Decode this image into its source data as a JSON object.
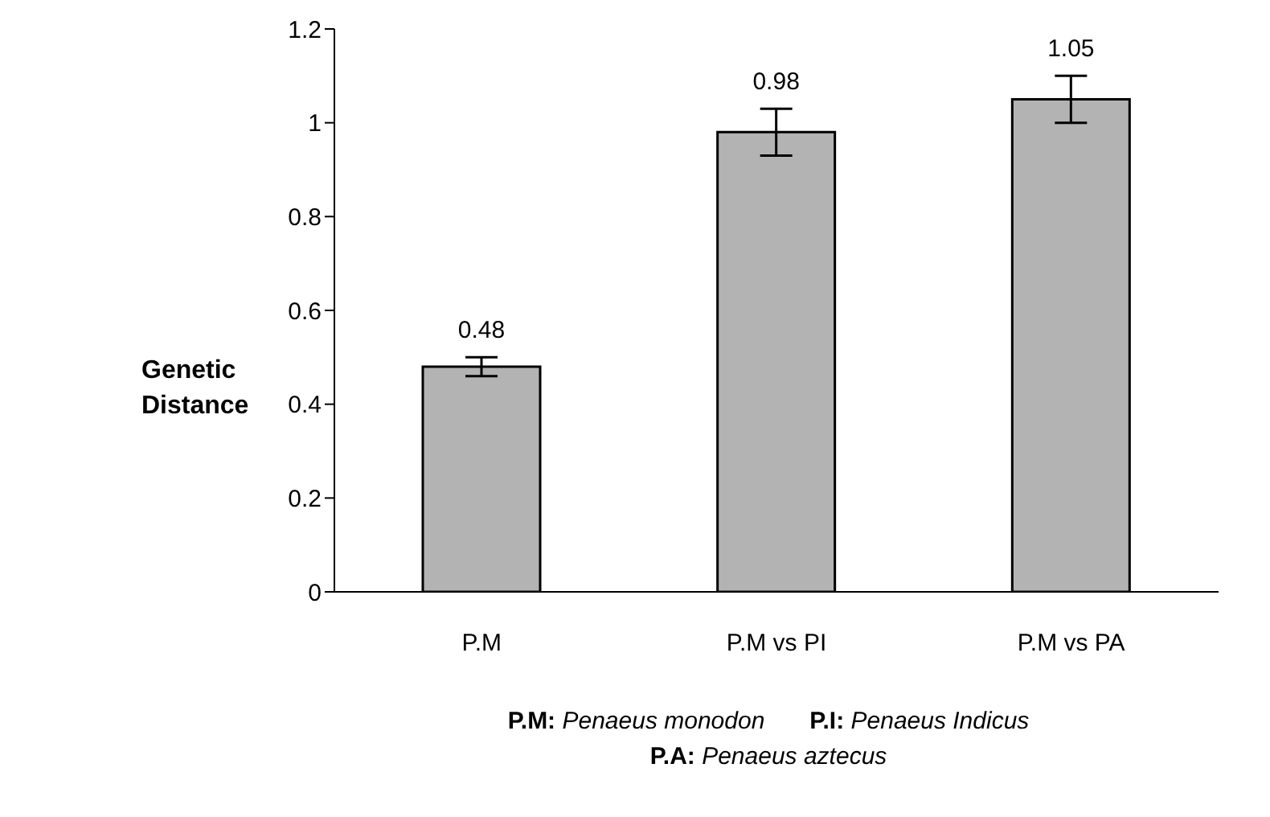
{
  "chart_data": {
    "type": "bar",
    "ylabel": "Genetic Distance",
    "categories": [
      "P.M",
      "P.M vs PI",
      "P.M vs PA"
    ],
    "values": [
      0.48,
      0.98,
      1.05
    ],
    "errors": [
      0.02,
      0.05,
      0.05
    ],
    "color": "#b3b3b3",
    "data_labels": true,
    "ylim": [
      0,
      1.2
    ],
    "yticks": [
      0,
      0.2,
      0.4,
      0.6,
      0.8,
      1,
      1.2
    ],
    "grid": false,
    "legend": false,
    "annotations": [
      "P.M: Penaeus monodon",
      "P.I: Penaeus Indicus",
      "P.A: Penaeus aztecus"
    ]
  }
}
